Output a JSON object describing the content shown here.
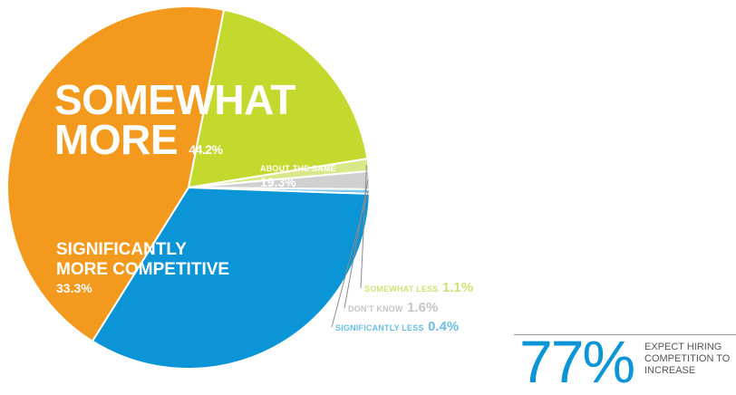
{
  "chart_data": {
    "type": "pie",
    "slices": [
      {
        "label_lines": [
          "SOMEWHAT",
          "MORE"
        ],
        "value": 44.2,
        "value_text": "44.2%",
        "color": "#f39a1e"
      },
      {
        "label_lines": [
          "ABOUT THE SAME"
        ],
        "value": 19.3,
        "value_text": "19.3%",
        "color": "#c4d92e"
      },
      {
        "label_lines": [
          "SOMEWHAT LESS"
        ],
        "value": 1.1,
        "value_text": "1.1%",
        "color": "#d8e88a"
      },
      {
        "label_lines": [
          "DON'T KNOW"
        ],
        "value": 1.6,
        "value_text": "1.6%",
        "color": "#d0d0d0"
      },
      {
        "label_lines": [
          "SIGNIFICANTLY LESS"
        ],
        "value": 0.4,
        "value_text": "0.4%",
        "color": "#7cc6ea"
      },
      {
        "label_lines": [
          "SIGNIFICANTLY",
          "MORE COMPETITIVE"
        ],
        "value": 33.3,
        "value_text": "33.3%",
        "color": "#0b95d6"
      }
    ]
  },
  "callout": {
    "number": "77%",
    "text": "EXPECT HIRING COMPETITION TO INCREASE",
    "color": "#0b95d6"
  }
}
